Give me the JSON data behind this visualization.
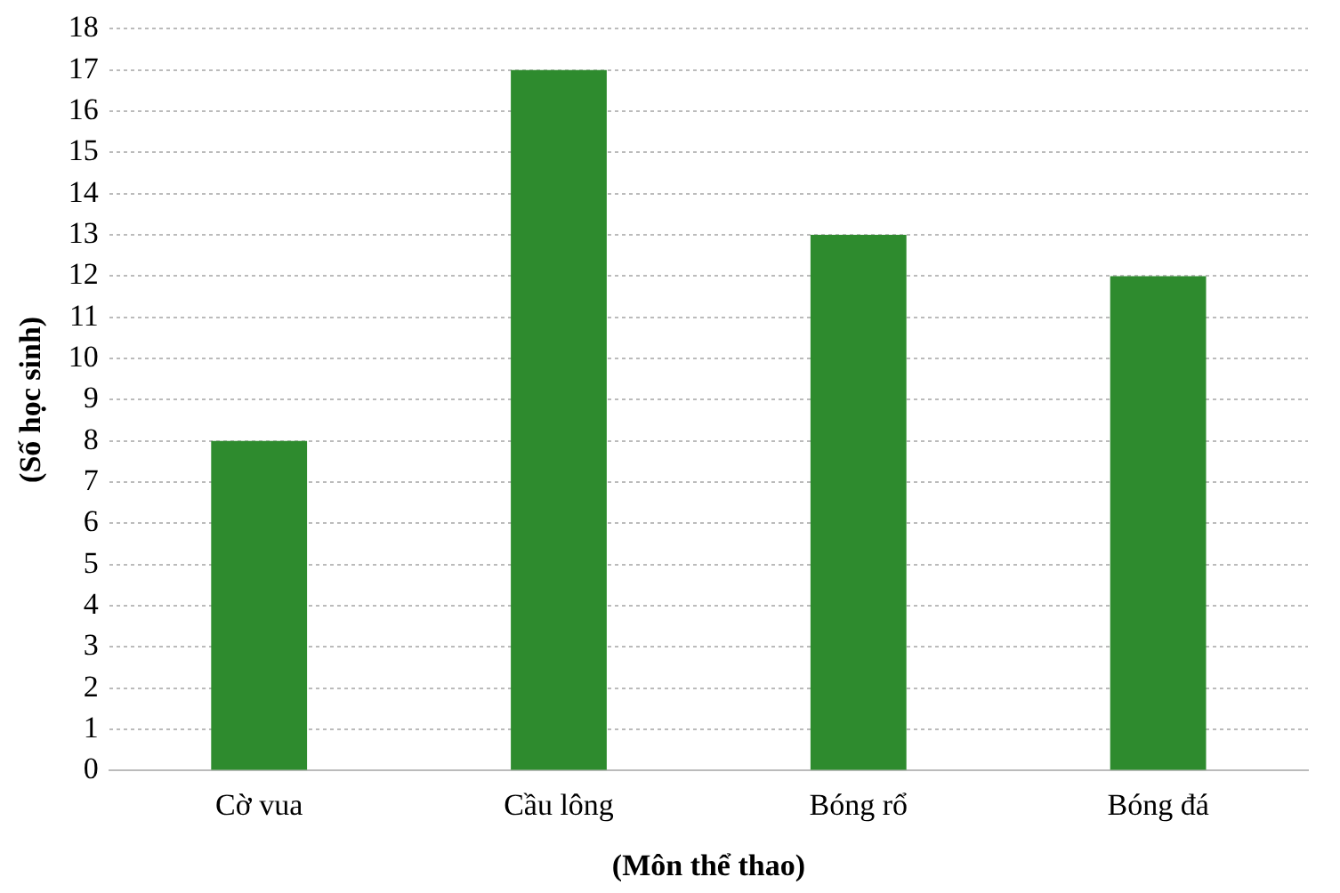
{
  "chart_data": {
    "type": "bar",
    "xlabel": "(Môn thể thao)",
    "ylabel": "(Số học sinh)",
    "categories": [
      "Cờ vua",
      "Cầu lông",
      "Bóng rổ",
      "Bóng đá"
    ],
    "values": [
      8,
      17,
      13,
      12
    ],
    "color": "#2e8b2e",
    "ylim": [
      0,
      18
    ],
    "yticks": [
      0,
      1,
      2,
      3,
      4,
      5,
      6,
      7,
      8,
      9,
      10,
      11,
      12,
      13,
      14,
      15,
      16,
      17,
      18
    ],
    "grid": "y",
    "legend": false
  }
}
